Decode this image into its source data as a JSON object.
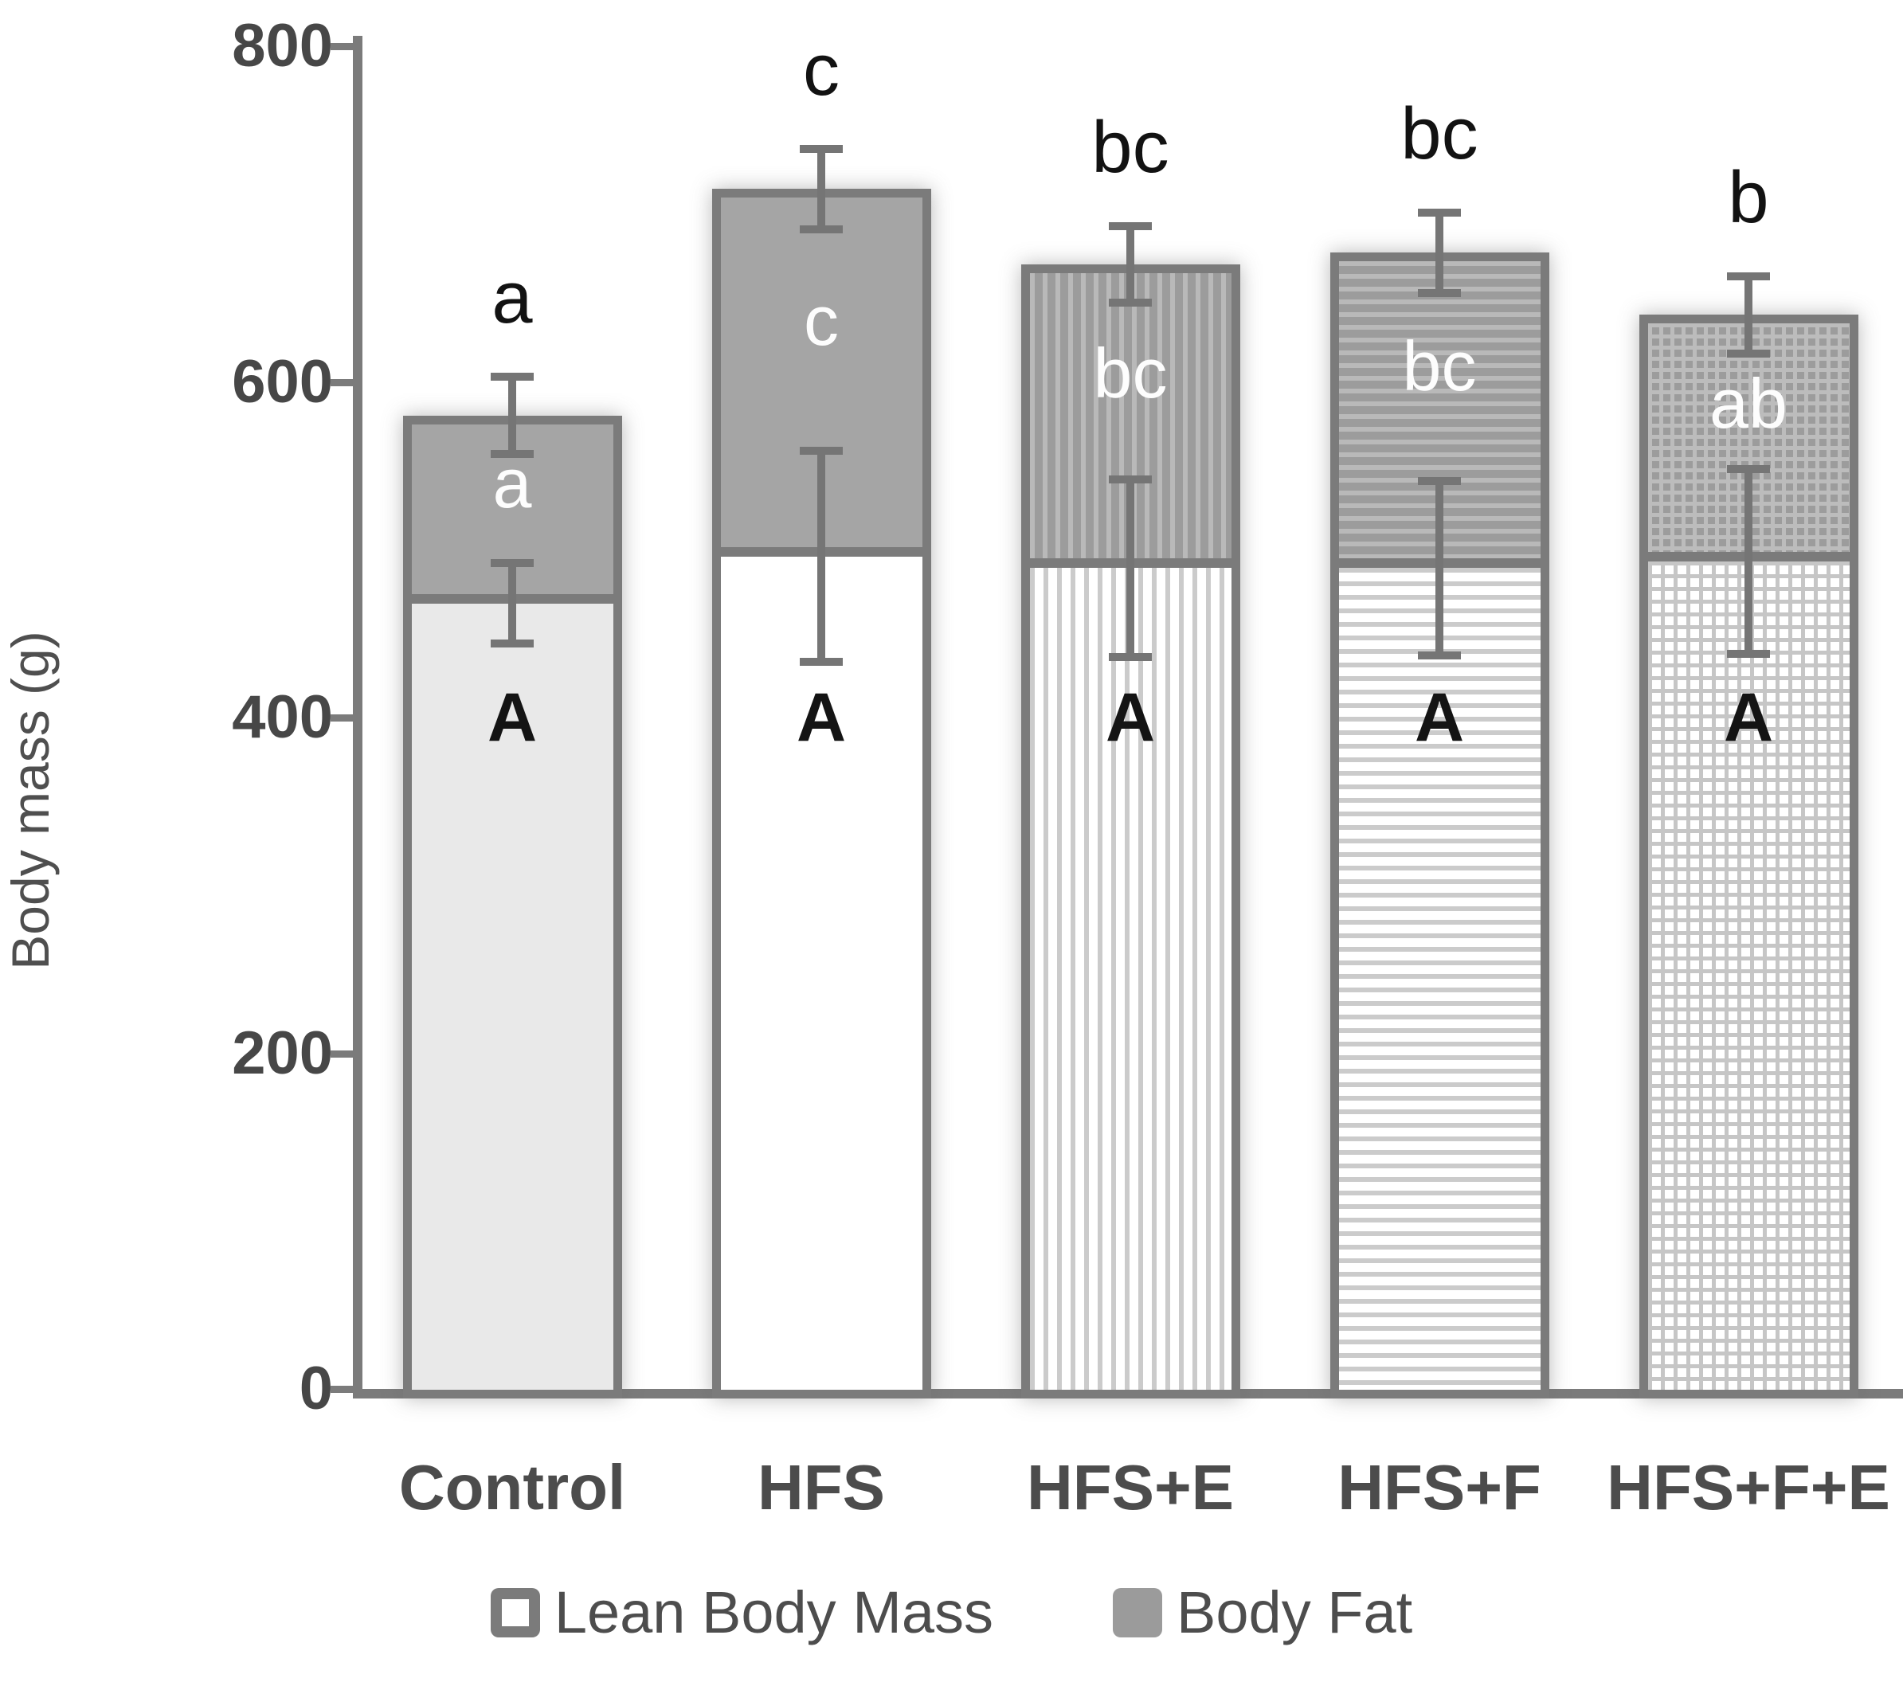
{
  "chart_data": {
    "type": "bar",
    "stacked": true,
    "title": "",
    "xlabel": "",
    "ylabel": "Body mass (g)",
    "ylim": [
      0,
      800
    ],
    "yticks": [
      0,
      200,
      400,
      600,
      800
    ],
    "grid": false,
    "legend_position": "bottom",
    "categories": [
      "Control",
      "HFS",
      "HFS+E",
      "HFS+F",
      "HFS+F+E"
    ],
    "series": [
      {
        "name": "Lean Body Mass",
        "values": [
          468,
          496,
          489,
          489,
          493
        ],
        "errors": [
          24,
          63,
          53,
          52,
          55
        ]
      },
      {
        "name": "Body Fat",
        "values": [
          112,
          219,
          181,
          188,
          147
        ]
      }
    ],
    "totals": [
      580,
      715,
      670,
      677,
      640
    ],
    "total_errors": [
      23,
      24,
      23,
      24,
      23
    ],
    "sig_letters_above_bar": [
      "a",
      "c",
      "bc",
      "bc",
      "b"
    ],
    "sig_letters_in_fat": [
      "a",
      "c",
      "bc",
      "bc",
      "ab"
    ],
    "sig_letters_in_lean": [
      "A",
      "A",
      "A",
      "A",
      "A"
    ],
    "bar_patterns": [
      "solid",
      "plain",
      "vertical",
      "horizontal",
      "grid"
    ]
  },
  "colors": {
    "bar_border": "#7b7b7b",
    "fat_fill": "#a5a5a5",
    "lean_solid_fill": "#e9e9e9",
    "error_bar": "#757575",
    "axis": "#7b7b7b",
    "tick_label": "#474747",
    "category_label": "#4c4c4c",
    "sig_letter_dark": "#121212",
    "sig_letter_light": "#fdfdfd",
    "background": "#ffffff"
  }
}
